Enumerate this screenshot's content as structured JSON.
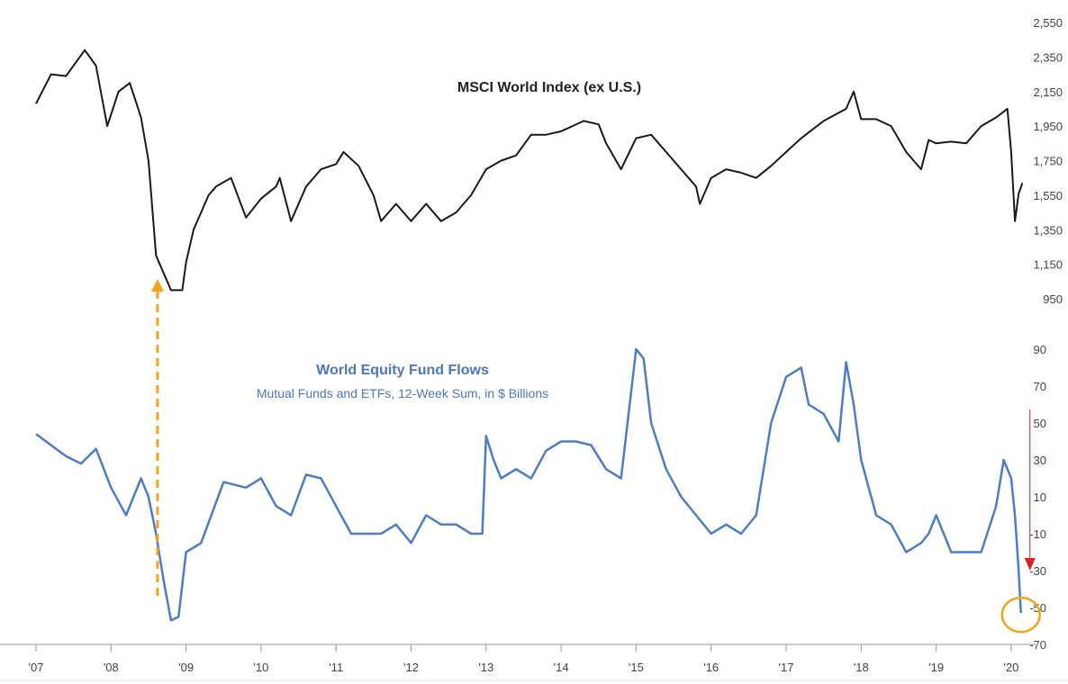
{
  "chart_data": [
    {
      "type": "line",
      "title": "MSCI World Index (ex U.S.)",
      "ylim": [
        950,
        2550
      ],
      "y_ticks": [
        "2,550",
        "2,350",
        "2,150",
        "1,950",
        "1,750",
        "1,550",
        "1,350",
        "1,150",
        "950"
      ],
      "y_tick_values": [
        2550,
        2350,
        2150,
        1950,
        1750,
        1550,
        1350,
        1150,
        950
      ],
      "color": "#1a1a1a",
      "x": [
        2007.0,
        2007.2,
        2007.4,
        2007.55,
        2007.65,
        2007.8,
        2007.95,
        2008.1,
        2008.25,
        2008.4,
        2008.5,
        2008.6,
        2008.7,
        2008.8,
        2008.95,
        2009.0,
        2009.1,
        2009.2,
        2009.3,
        2009.4,
        2009.6,
        2009.8,
        2010.0,
        2010.2,
        2010.25,
        2010.4,
        2010.6,
        2010.8,
        2011.0,
        2011.1,
        2011.3,
        2011.5,
        2011.6,
        2011.8,
        2012.0,
        2012.2,
        2012.4,
        2012.6,
        2012.8,
        2013.0,
        2013.2,
        2013.4,
        2013.6,
        2013.8,
        2014.0,
        2014.3,
        2014.5,
        2014.6,
        2014.8,
        2015.0,
        2015.2,
        2015.4,
        2015.6,
        2015.8,
        2015.85,
        2016.0,
        2016.2,
        2016.4,
        2016.6,
        2016.8,
        2017.0,
        2017.2,
        2017.5,
        2017.8,
        2017.9,
        2018.0,
        2018.2,
        2018.4,
        2018.6,
        2018.8,
        2018.9,
        2019.0,
        2019.2,
        2019.4,
        2019.6,
        2019.8,
        2019.95,
        2020.0,
        2020.05,
        2020.1,
        2020.15
      ],
      "values": [
        2080,
        2250,
        2240,
        2330,
        2390,
        2300,
        1950,
        2150,
        2200,
        2000,
        1750,
        1200,
        1100,
        1000,
        1000,
        1160,
        1350,
        1450,
        1550,
        1600,
        1650,
        1420,
        1530,
        1600,
        1650,
        1400,
        1600,
        1700,
        1730,
        1800,
        1720,
        1550,
        1400,
        1500,
        1400,
        1500,
        1400,
        1450,
        1550,
        1700,
        1750,
        1780,
        1900,
        1900,
        1920,
        1980,
        1960,
        1850,
        1700,
        1880,
        1900,
        1800,
        1700,
        1600,
        1500,
        1650,
        1700,
        1680,
        1650,
        1720,
        1800,
        1880,
        1980,
        2050,
        2150,
        1990,
        1990,
        1950,
        1800,
        1700,
        1870,
        1850,
        1860,
        1850,
        1950,
        2000,
        2050,
        1800,
        1400,
        1560,
        1620
      ]
    },
    {
      "type": "line",
      "title": "World Equity Fund Flows",
      "subtitle": "Mutual Funds and ETFs, 12-Week Sum, in $ Billions",
      "ylim": [
        -70,
        90
      ],
      "y_ticks": [
        "90",
        "70",
        "50",
        "30",
        "10",
        "-10",
        "-30",
        "-50",
        "-70"
      ],
      "y_tick_values": [
        90,
        70,
        50,
        30,
        10,
        -10,
        -30,
        -50,
        -70
      ],
      "color": "#4d7ec4",
      "x": [
        2007.0,
        2007.2,
        2007.4,
        2007.6,
        2007.8,
        2008.0,
        2008.2,
        2008.4,
        2008.5,
        2008.6,
        2008.7,
        2008.8,
        2008.9,
        2009.0,
        2009.2,
        2009.5,
        2009.8,
        2010.0,
        2010.2,
        2010.4,
        2010.6,
        2010.8,
        2011.0,
        2011.2,
        2011.4,
        2011.6,
        2011.8,
        2012.0,
        2012.2,
        2012.4,
        2012.6,
        2012.8,
        2012.95,
        2013.0,
        2013.1,
        2013.2,
        2013.4,
        2013.6,
        2013.8,
        2014.0,
        2014.2,
        2014.4,
        2014.6,
        2014.8,
        2015.0,
        2015.1,
        2015.2,
        2015.4,
        2015.6,
        2015.8,
        2016.0,
        2016.2,
        2016.4,
        2016.6,
        2016.8,
        2017.0,
        2017.2,
        2017.3,
        2017.5,
        2017.7,
        2017.8,
        2017.9,
        2018.0,
        2018.2,
        2018.4,
        2018.6,
        2018.8,
        2018.9,
        2019.0,
        2019.2,
        2019.4,
        2019.6,
        2019.8,
        2019.9,
        2020.0,
        2020.05,
        2020.1,
        2020.13
      ],
      "values": [
        44,
        38,
        32,
        28,
        36,
        15,
        0,
        20,
        10,
        -10,
        -35,
        -57,
        -55,
        -20,
        -15,
        18,
        15,
        20,
        5,
        0,
        22,
        20,
        5,
        -10,
        -10,
        -10,
        -5,
        -15,
        0,
        -5,
        -5,
        -10,
        -10,
        43,
        30,
        20,
        25,
        20,
        35,
        40,
        40,
        38,
        25,
        20,
        90,
        85,
        50,
        25,
        10,
        0,
        -10,
        -5,
        -10,
        0,
        50,
        75,
        80,
        60,
        55,
        40,
        83,
        60,
        30,
        0,
        -5,
        -20,
        -15,
        -10,
        0,
        -20,
        -20,
        -20,
        5,
        30,
        20,
        0,
        -30,
        -53
      ]
    }
  ],
  "x_axis": {
    "tick_labels": [
      "'07",
      "'08",
      "'09",
      "'10",
      "'11",
      "'12",
      "'13",
      "'14",
      "'15",
      "'16",
      "'17",
      "'18",
      "'19",
      "'20"
    ],
    "tick_years": [
      2007,
      2008,
      2009,
      2010,
      2011,
      2012,
      2013,
      2014,
      2015,
      2016,
      2017,
      2018,
      2019,
      2020
    ]
  },
  "annotations": {
    "dashed_arrow": {
      "color": "#f2a51a",
      "year": 2008.62,
      "from": "fund-flow trough",
      "to": "index trough"
    },
    "red_arrow": {
      "color": "#e02020",
      "year": 2020.13
    },
    "circle": {
      "color": "#f2a51a",
      "year": 2020.13,
      "value": -53
    }
  }
}
